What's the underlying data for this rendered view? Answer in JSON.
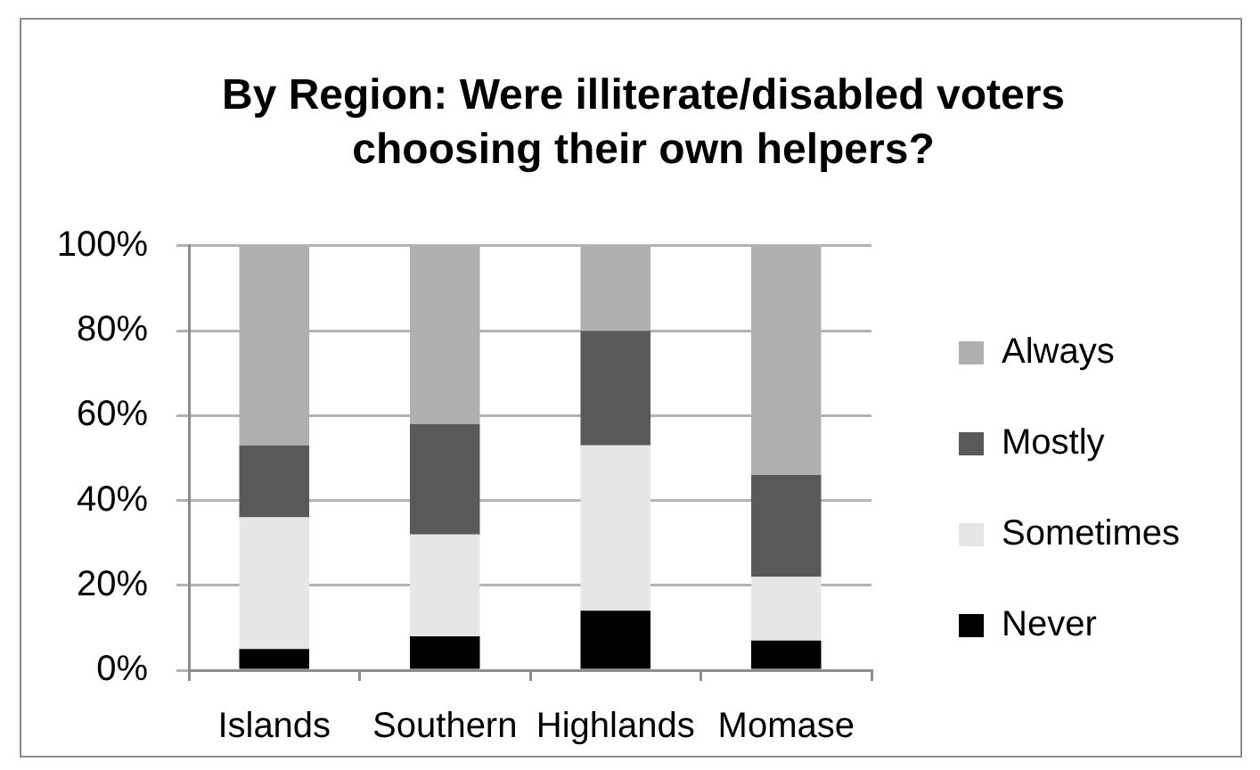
{
  "chart_data": {
    "type": "bar",
    "title": "By Region: Were illiterate/disabled voters choosing their own helpers?",
    "categories": [
      "Islands",
      "Southern",
      "Highlands",
      "Momase"
    ],
    "series": [
      {
        "name": "Never",
        "color": "#000000",
        "values": [
          5,
          8,
          14,
          7
        ]
      },
      {
        "name": "Sometimes",
        "color": "#e6e6e6",
        "values": [
          31,
          24,
          39,
          15
        ]
      },
      {
        "name": "Mostly",
        "color": "#595959",
        "values": [
          17,
          26,
          27,
          24
        ]
      },
      {
        "name": "Always",
        "color": "#b0b0b0",
        "values": [
          47,
          42,
          20,
          54
        ]
      }
    ],
    "stacked": true,
    "ylim": [
      0,
      100
    ],
    "yticks": [
      {
        "value": 0,
        "label": "0%"
      },
      {
        "value": 20,
        "label": "20%"
      },
      {
        "value": 40,
        "label": "40%"
      },
      {
        "value": 60,
        "label": "60%"
      },
      {
        "value": 80,
        "label": "80%"
      },
      {
        "value": 100,
        "label": "100%"
      }
    ],
    "grid": "y",
    "legend": "right"
  }
}
